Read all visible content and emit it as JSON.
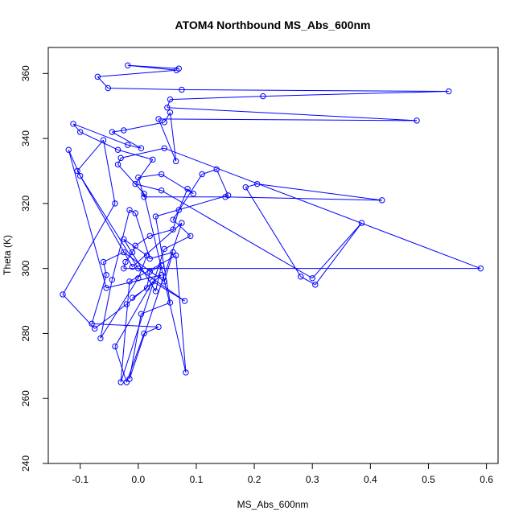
{
  "chart_data": {
    "type": "line",
    "title": "ATOM4 Northbound MS_Abs_600nm",
    "xlabel": "MS_Abs_600nm",
    "ylabel": "Theta (K)",
    "xlim": [
      -0.155,
      0.62
    ],
    "ylim": [
      240,
      368
    ],
    "x_ticks": [
      -0.1,
      0.0,
      0.1,
      0.2,
      0.3,
      0.4,
      0.5,
      0.6
    ],
    "x_tick_labels": [
      "-0.1",
      "0.0",
      "0.1",
      "0.2",
      "0.3",
      "0.4",
      "0.5",
      "0.6"
    ],
    "y_ticks": [
      240,
      260,
      280,
      300,
      320,
      340,
      360
    ],
    "y_tick_labels": [
      "240",
      "260",
      "280",
      "300",
      "320",
      "340",
      "360"
    ],
    "grid": false,
    "markers": "open circles",
    "color": "#0000ff",
    "series": [
      {
        "x": [
          0.07,
          -0.018,
          0.066,
          -0.07,
          -0.052,
          0.075,
          0.535,
          0.215,
          0.055,
          0.05,
          0.48,
          0.035,
          0.065,
          0.055,
          0.045,
          -0.025,
          -0.045,
          0.005,
          -0.018,
          -0.112,
          -0.1,
          -0.035,
          0.025,
          -0.005,
          0.04,
          0.3,
          0.385,
          0.305,
          0.28,
          0.185,
          0.205,
          0.42,
          0.15,
          0.01,
          0.0,
          0.04,
          0.095,
          0.085,
          0.07,
          0.06,
          0.02,
          -0.005,
          -0.01,
          -0.022,
          -0.025,
          0.59,
          0.045,
          -0.03,
          -0.035,
          0.01,
          0.082,
          0.065,
          -0.015,
          -0.03,
          0.045,
          0.09,
          0.06,
          0.11,
          0.135,
          0.155,
          0.03,
          0.055,
          0.005,
          -0.015,
          0.075,
          -0.01,
          -0.105,
          -0.06,
          -0.04,
          -0.13,
          -0.075,
          -0.02,
          0.04,
          -0.055,
          -0.12,
          -0.1,
          0.0,
          0.08,
          0.025,
          -0.04,
          -0.02,
          0.01,
          0.035,
          -0.08,
          -0.055,
          -0.06,
          -0.025,
          0.045,
          0.06,
          0.02,
          -0.005,
          -0.015,
          -0.045,
          -0.065,
          0.0,
          0.015,
          -0.025,
          0.03,
          0.04,
          0.02,
          0.015,
          -0.01
        ],
        "y": [
          361.5,
          362.5,
          361.0,
          359.0,
          355.5,
          355.0,
          354.5,
          353.0,
          352.0,
          349.5,
          345.5,
          346.0,
          333.0,
          348.0,
          345.0,
          342.5,
          342.0,
          337.0,
          338.0,
          344.5,
          342.0,
          336.5,
          333.5,
          326.0,
          324.0,
          297.0,
          314.0,
          295.0,
          297.5,
          325.0,
          326.0,
          321.0,
          322.0,
          322.0,
          328.0,
          329.0,
          323.0,
          324.5,
          318.0,
          312.0,
          310.0,
          307.0,
          305.0,
          302.0,
          300.0,
          300.0,
          337.0,
          334.0,
          332.0,
          323.0,
          268.0,
          304.0,
          296.0,
          265.0,
          306.0,
          310.0,
          315.0,
          329.0,
          330.5,
          322.5,
          316.0,
          289.5,
          286.0,
          266.0,
          314.0,
          300.5,
          330.0,
          339.5,
          320.0,
          292.0,
          281.5,
          289.0,
          298.0,
          294.0,
          336.5,
          328.5,
          300.0,
          290.0,
          296.0,
          276.0,
          265.0,
          280.0,
          282.0,
          283.0,
          298.0,
          302.0,
          305.0,
          296.0,
          305.0,
          303.0,
          317.0,
          318.0,
          296.5,
          278.5,
          297.0,
          304.0,
          309.0,
          293.0,
          301.0,
          299.0,
          294.0,
          291.0
        ]
      }
    ]
  }
}
